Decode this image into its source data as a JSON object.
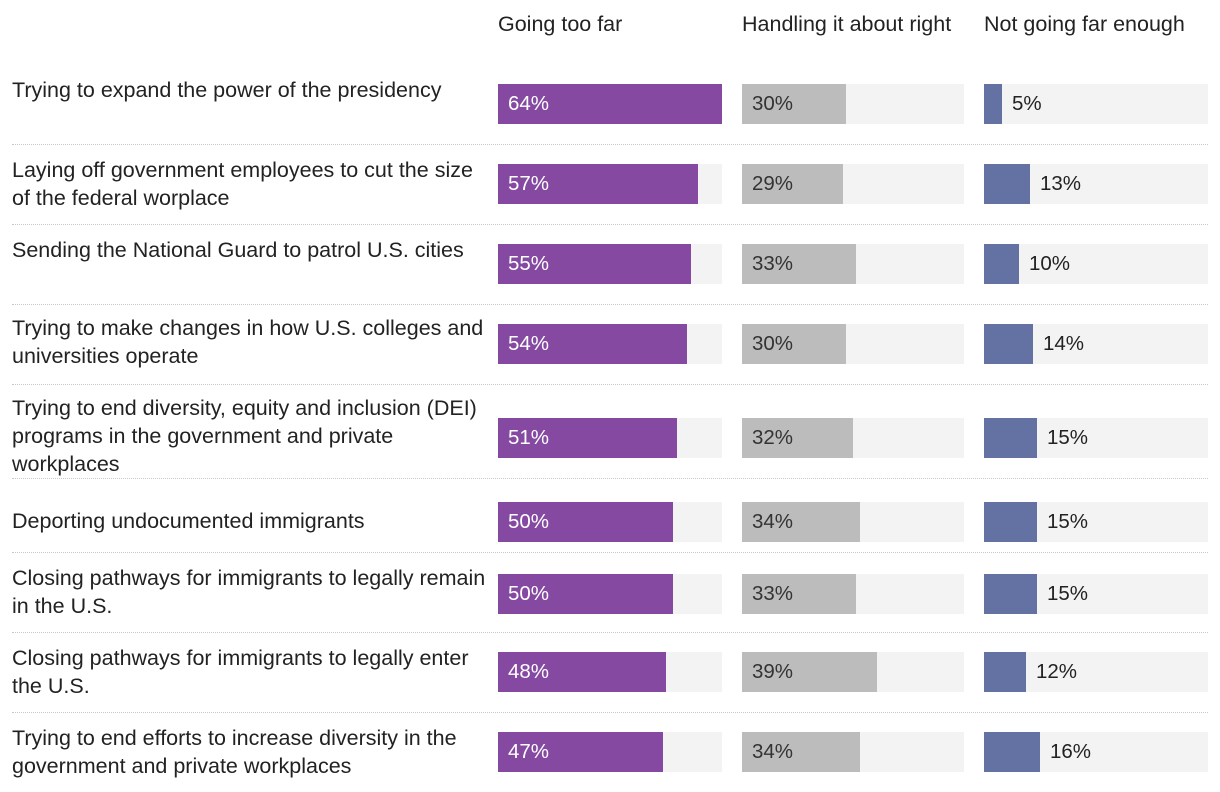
{
  "chart_data": {
    "type": "bar",
    "orientation": "horizontal",
    "layout": "small-multiples",
    "xlim": [
      0,
      100
    ],
    "value_suffix": "%",
    "series": [
      {
        "name": "Going too far",
        "color": "#8549a2",
        "values": [
          64,
          57,
          55,
          54,
          51,
          50,
          50,
          48,
          47
        ]
      },
      {
        "name": "Handling it about right",
        "color": "#bcbcbc",
        "values": [
          30,
          29,
          33,
          30,
          32,
          34,
          33,
          39,
          34
        ]
      },
      {
        "name": "Not going far enough",
        "color": "#6371a3",
        "values": [
          5,
          13,
          10,
          14,
          15,
          15,
          15,
          12,
          16
        ]
      }
    ],
    "categories": [
      "Trying to expand the power of the presidency",
      "Laying off government employees to cut the size of the federal worplace",
      "Sending the National Guard to patrol U.S. cities",
      "Trying to make changes in how U.S. colleges and universities operate",
      "Trying to end diversity, equity and inclusion (DEI) programs in the government and private workplaces",
      "Deporting undocumented immigrants",
      "Closing pathways for immigrants to legally remain in the U.S.",
      "Closing pathways for immigrants to legally enter the U.S.",
      "Trying to end efforts to increase diversity in the government and private workplaces"
    ],
    "colors": {
      "track": "#f3f3f3",
      "separator": "#c9c9c9",
      "text": "#222222"
    }
  }
}
